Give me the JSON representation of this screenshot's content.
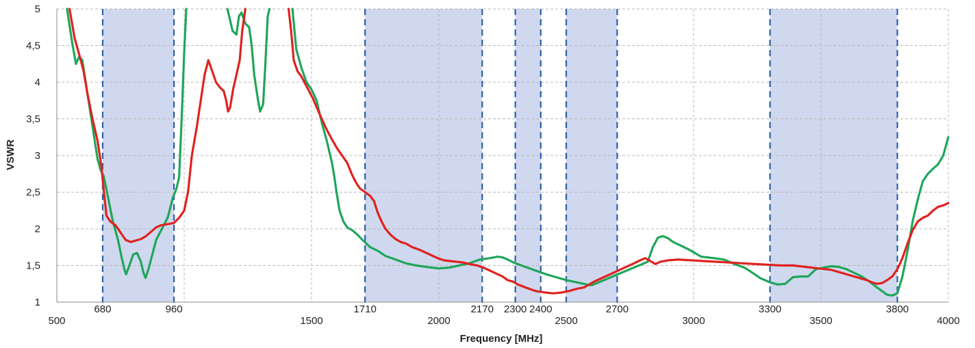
{
  "chart_data": {
    "type": "line",
    "title": "",
    "xlabel": "Frequency [MHz]",
    "ylabel": "VSWR",
    "xlim": [
      500,
      4000
    ],
    "ylim": [
      1,
      5
    ],
    "grid": true,
    "colors": {
      "band_fill": "#cfd8ee",
      "band_edge": "#2e5fa8",
      "grid": "#b8b8b8",
      "axis": "#888888",
      "series_green": "#1fa65a",
      "series_red": "#e0221f"
    },
    "y_ticks": [
      {
        "value": 1,
        "label": "1"
      },
      {
        "value": 1.5,
        "label": "1,5"
      },
      {
        "value": 2,
        "label": "2"
      },
      {
        "value": 2.5,
        "label": "2,5"
      },
      {
        "value": 3,
        "label": "3"
      },
      {
        "value": 3.5,
        "label": "3,5"
      },
      {
        "value": 4,
        "label": "4"
      },
      {
        "value": 4.5,
        "label": "4,5"
      },
      {
        "value": 5,
        "label": "5"
      }
    ],
    "x_ticks_major": [
      {
        "value": 500,
        "label": "500"
      },
      {
        "value": 1500,
        "label": "1500"
      },
      {
        "value": 2000,
        "label": "2000"
      },
      {
        "value": 2500,
        "label": "2500"
      },
      {
        "value": 3000,
        "label": "3000"
      },
      {
        "value": 3500,
        "label": "3500"
      },
      {
        "value": 4000,
        "label": "4000"
      }
    ],
    "x_ticks_band": [
      {
        "value": 680,
        "label": "680"
      },
      {
        "value": 960,
        "label": "960"
      },
      {
        "value": 1710,
        "label": "1710"
      },
      {
        "value": 2170,
        "label": "2170"
      },
      {
        "value": 2300,
        "label": "2300"
      },
      {
        "value": 2400,
        "label": "2400"
      },
      {
        "value": 2700,
        "label": "2700"
      },
      {
        "value": 3300,
        "label": "3300"
      },
      {
        "value": 3800,
        "label": "3800"
      }
    ],
    "v_gridlines": [
      1000,
      1500,
      2000,
      2500,
      3000,
      3500
    ],
    "bands": [
      {
        "from": 680,
        "to": 960
      },
      {
        "from": 1710,
        "to": 2170
      },
      {
        "from": 2300,
        "to": 2400
      },
      {
        "from": 2500,
        "to": 2700
      },
      {
        "from": 3300,
        "to": 3800
      }
    ],
    "series": [
      {
        "color": "#1fa65a",
        "points": [
          [
            540,
            5.0
          ],
          [
            560,
            4.55
          ],
          [
            575,
            4.25
          ],
          [
            588,
            4.35
          ],
          [
            600,
            4.3
          ],
          [
            620,
            3.85
          ],
          [
            640,
            3.4
          ],
          [
            660,
            2.95
          ],
          [
            672,
            2.8
          ],
          [
            684,
            2.72
          ],
          [
            700,
            2.45
          ],
          [
            720,
            2.1
          ],
          [
            740,
            1.85
          ],
          [
            755,
            1.6
          ],
          [
            765,
            1.45
          ],
          [
            772,
            1.38
          ],
          [
            785,
            1.5
          ],
          [
            800,
            1.65
          ],
          [
            815,
            1.67
          ],
          [
            830,
            1.55
          ],
          [
            840,
            1.4
          ],
          [
            848,
            1.33
          ],
          [
            860,
            1.45
          ],
          [
            875,
            1.65
          ],
          [
            890,
            1.85
          ],
          [
            905,
            1.95
          ],
          [
            920,
            2.05
          ],
          [
            935,
            2.15
          ],
          [
            945,
            2.28
          ],
          [
            955,
            2.42
          ],
          [
            970,
            2.55
          ],
          [
            980,
            2.7
          ],
          [
            990,
            3.5
          ],
          [
            1000,
            4.4
          ],
          [
            1008,
            5.0
          ],
          [
            1170,
            5.0
          ],
          [
            1190,
            4.7
          ],
          [
            1205,
            4.65
          ],
          [
            1215,
            4.9
          ],
          [
            1225,
            4.95
          ],
          [
            1240,
            4.8
          ],
          [
            1255,
            4.75
          ],
          [
            1265,
            4.5
          ],
          [
            1275,
            4.1
          ],
          [
            1290,
            3.75
          ],
          [
            1298,
            3.6
          ],
          [
            1310,
            3.7
          ],
          [
            1318,
            4.2
          ],
          [
            1328,
            4.9
          ],
          [
            1335,
            5.0
          ],
          [
            1425,
            5.0
          ],
          [
            1440,
            4.45
          ],
          [
            1460,
            4.2
          ],
          [
            1480,
            4.0
          ],
          [
            1500,
            3.9
          ],
          [
            1520,
            3.75
          ],
          [
            1540,
            3.45
          ],
          [
            1560,
            3.2
          ],
          [
            1580,
            2.9
          ],
          [
            1590,
            2.7
          ],
          [
            1598,
            2.5
          ],
          [
            1610,
            2.25
          ],
          [
            1625,
            2.1
          ],
          [
            1640,
            2.02
          ],
          [
            1660,
            1.98
          ],
          [
            1680,
            1.92
          ],
          [
            1700,
            1.85
          ],
          [
            1730,
            1.75
          ],
          [
            1760,
            1.7
          ],
          [
            1790,
            1.63
          ],
          [
            1830,
            1.58
          ],
          [
            1870,
            1.53
          ],
          [
            1910,
            1.5
          ],
          [
            1950,
            1.48
          ],
          [
            2000,
            1.46
          ],
          [
            2040,
            1.47
          ],
          [
            2080,
            1.5
          ],
          [
            2120,
            1.53
          ],
          [
            2160,
            1.58
          ],
          [
            2200,
            1.6
          ],
          [
            2230,
            1.62
          ],
          [
            2250,
            1.61
          ],
          [
            2270,
            1.58
          ],
          [
            2300,
            1.53
          ],
          [
            2340,
            1.48
          ],
          [
            2380,
            1.43
          ],
          [
            2420,
            1.38
          ],
          [
            2460,
            1.34
          ],
          [
            2500,
            1.3
          ],
          [
            2540,
            1.27
          ],
          [
            2580,
            1.24
          ],
          [
            2600,
            1.23
          ],
          [
            2820,
            1.55
          ],
          [
            2840,
            1.75
          ],
          [
            2860,
            1.88
          ],
          [
            2880,
            1.9
          ],
          [
            2900,
            1.87
          ],
          [
            2920,
            1.82
          ],
          [
            2950,
            1.77
          ],
          [
            2980,
            1.72
          ],
          [
            3000,
            1.68
          ],
          [
            3030,
            1.62
          ],
          [
            3080,
            1.6
          ],
          [
            3120,
            1.58
          ],
          [
            3160,
            1.52
          ],
          [
            3200,
            1.47
          ],
          [
            3240,
            1.38
          ],
          [
            3260,
            1.33
          ],
          [
            3300,
            1.27
          ],
          [
            3330,
            1.24
          ],
          [
            3360,
            1.25
          ],
          [
            3390,
            1.34
          ],
          [
            3420,
            1.35
          ],
          [
            3450,
            1.35
          ],
          [
            3480,
            1.45
          ],
          [
            3510,
            1.47
          ],
          [
            3540,
            1.49
          ],
          [
            3570,
            1.48
          ],
          [
            3600,
            1.45
          ],
          [
            3630,
            1.4
          ],
          [
            3660,
            1.35
          ],
          [
            3690,
            1.28
          ],
          [
            3720,
            1.2
          ],
          [
            3740,
            1.15
          ],
          [
            3760,
            1.1
          ],
          [
            3780,
            1.09
          ],
          [
            3800,
            1.12
          ],
          [
            3820,
            1.35
          ],
          [
            3840,
            1.7
          ],
          [
            3860,
            2.1
          ],
          [
            3880,
            2.4
          ],
          [
            3900,
            2.65
          ],
          [
            3920,
            2.75
          ],
          [
            3940,
            2.82
          ],
          [
            3960,
            2.88
          ],
          [
            3980,
            3.0
          ],
          [
            4000,
            3.25
          ]
        ]
      },
      {
        "color": "#e0221f",
        "points": [
          [
            550,
            5.0
          ],
          [
            570,
            4.6
          ],
          [
            590,
            4.35
          ],
          [
            605,
            4.15
          ],
          [
            620,
            3.85
          ],
          [
            640,
            3.5
          ],
          [
            660,
            3.2
          ],
          [
            675,
            2.85
          ],
          [
            685,
            2.5
          ],
          [
            695,
            2.18
          ],
          [
            710,
            2.1
          ],
          [
            730,
            2.05
          ],
          [
            750,
            1.95
          ],
          [
            770,
            1.85
          ],
          [
            790,
            1.82
          ],
          [
            810,
            1.84
          ],
          [
            830,
            1.86
          ],
          [
            850,
            1.9
          ],
          [
            870,
            1.96
          ],
          [
            890,
            2.02
          ],
          [
            910,
            2.05
          ],
          [
            930,
            2.06
          ],
          [
            960,
            2.08
          ],
          [
            980,
            2.15
          ],
          [
            1000,
            2.25
          ],
          [
            1015,
            2.5
          ],
          [
            1030,
            3.0
          ],
          [
            1050,
            3.4
          ],
          [
            1065,
            3.75
          ],
          [
            1080,
            4.1
          ],
          [
            1095,
            4.3
          ],
          [
            1110,
            4.15
          ],
          [
            1125,
            4.0
          ],
          [
            1140,
            3.93
          ],
          [
            1155,
            3.88
          ],
          [
            1165,
            3.75
          ],
          [
            1172,
            3.6
          ],
          [
            1180,
            3.65
          ],
          [
            1192,
            3.9
          ],
          [
            1205,
            4.1
          ],
          [
            1218,
            4.3
          ],
          [
            1228,
            4.7
          ],
          [
            1240,
            5.0
          ],
          [
            1410,
            5.0
          ],
          [
            1420,
            4.7
          ],
          [
            1430,
            4.3
          ],
          [
            1445,
            4.15
          ],
          [
            1460,
            4.08
          ],
          [
            1475,
            3.98
          ],
          [
            1490,
            3.88
          ],
          [
            1505,
            3.78
          ],
          [
            1520,
            3.66
          ],
          [
            1540,
            3.5
          ],
          [
            1560,
            3.35
          ],
          [
            1580,
            3.22
          ],
          [
            1600,
            3.1
          ],
          [
            1620,
            3.0
          ],
          [
            1640,
            2.9
          ],
          [
            1660,
            2.73
          ],
          [
            1675,
            2.63
          ],
          [
            1690,
            2.55
          ],
          [
            1710,
            2.5
          ],
          [
            1730,
            2.45
          ],
          [
            1745,
            2.38
          ],
          [
            1760,
            2.22
          ],
          [
            1775,
            2.1
          ],
          [
            1790,
            2.0
          ],
          [
            1810,
            1.92
          ],
          [
            1830,
            1.86
          ],
          [
            1850,
            1.82
          ],
          [
            1870,
            1.8
          ],
          [
            1895,
            1.75
          ],
          [
            1920,
            1.72
          ],
          [
            1945,
            1.68
          ],
          [
            1970,
            1.64
          ],
          [
            1995,
            1.6
          ],
          [
            2020,
            1.57
          ],
          [
            2045,
            1.56
          ],
          [
            2070,
            1.55
          ],
          [
            2095,
            1.54
          ],
          [
            2120,
            1.52
          ],
          [
            2150,
            1.5
          ],
          [
            2175,
            1.47
          ],
          [
            2200,
            1.43
          ],
          [
            2225,
            1.39
          ],
          [
            2250,
            1.35
          ],
          [
            2270,
            1.3
          ],
          [
            2290,
            1.28
          ],
          [
            2310,
            1.24
          ],
          [
            2340,
            1.2
          ],
          [
            2380,
            1.15
          ],
          [
            2420,
            1.13
          ],
          [
            2450,
            1.12
          ],
          [
            2480,
            1.13
          ],
          [
            2510,
            1.15
          ],
          [
            2540,
            1.18
          ],
          [
            2570,
            1.2
          ],
          [
            2570,
            1.2
          ],
          [
            2610,
            1.28
          ],
          [
            2660,
            1.36
          ],
          [
            2710,
            1.44
          ],
          [
            2760,
            1.52
          ],
          [
            2790,
            1.57
          ],
          [
            2810,
            1.6
          ],
          [
            2830,
            1.56
          ],
          [
            2850,
            1.52
          ],
          [
            2870,
            1.55
          ],
          [
            2900,
            1.57
          ],
          [
            2940,
            1.58
          ],
          [
            2990,
            1.57
          ],
          [
            3040,
            1.56
          ],
          [
            3090,
            1.55
          ],
          [
            3140,
            1.54
          ],
          [
            3190,
            1.53
          ],
          [
            3240,
            1.52
          ],
          [
            3290,
            1.51
          ],
          [
            3340,
            1.5
          ],
          [
            3390,
            1.5
          ],
          [
            3440,
            1.48
          ],
          [
            3490,
            1.46
          ],
          [
            3540,
            1.44
          ],
          [
            3580,
            1.4
          ],
          [
            3620,
            1.36
          ],
          [
            3650,
            1.33
          ],
          [
            3680,
            1.3
          ],
          [
            3700,
            1.27
          ],
          [
            3720,
            1.25
          ],
          [
            3740,
            1.26
          ],
          [
            3760,
            1.3
          ],
          [
            3780,
            1.35
          ],
          [
            3800,
            1.45
          ],
          [
            3820,
            1.6
          ],
          [
            3840,
            1.8
          ],
          [
            3860,
            1.98
          ],
          [
            3880,
            2.1
          ],
          [
            3900,
            2.15
          ],
          [
            3920,
            2.18
          ],
          [
            3940,
            2.25
          ],
          [
            3960,
            2.3
          ],
          [
            3980,
            2.32
          ],
          [
            4000,
            2.35
          ]
        ]
      }
    ]
  }
}
